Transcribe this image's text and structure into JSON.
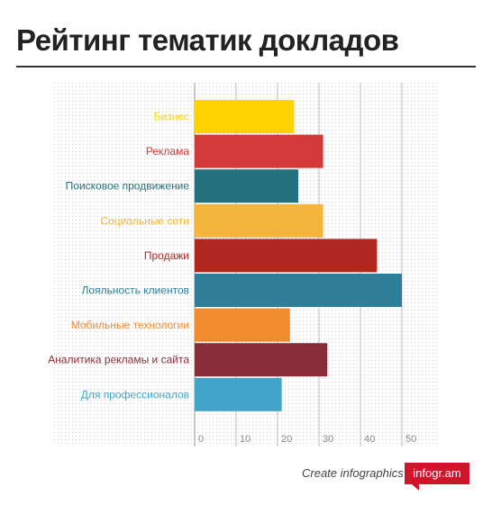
{
  "header": {
    "title": "Рейтинг тематик докладов"
  },
  "footer": {
    "create_label": "Create infographics",
    "logo": "infogr.am"
  },
  "chart_data": {
    "type": "bar",
    "orientation": "horizontal",
    "title": "Рейтинг тематик докладов",
    "categories": [
      "Бизнес",
      "Реклама",
      "Поисковое продвижение",
      "Социальные сети",
      "Продажи",
      "Лояльность клиентов",
      "Мобильные технологии",
      "Аналитика рекламы и сайта",
      "Для профессионалов"
    ],
    "values": [
      24,
      31,
      25,
      31,
      44,
      50,
      23,
      32,
      21
    ],
    "colors": [
      "#ffd200",
      "#d13a38",
      "#24707d",
      "#f4b43b",
      "#b1261f",
      "#2f7f99",
      "#f28a30",
      "#882c38",
      "#41a5c9"
    ],
    "xlim": [
      0,
      60
    ],
    "xticks": [
      0,
      10,
      20,
      30,
      40,
      50
    ],
    "grid": true
  }
}
